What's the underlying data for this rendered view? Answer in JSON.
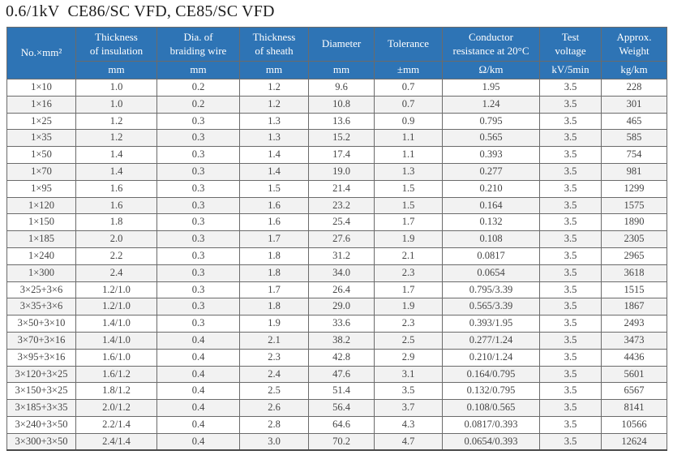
{
  "page": {
    "title": "0.6/1kV  CE86/SC VFD, CE85/SC VFD"
  },
  "colors": {
    "header_bg": "#2E74B5",
    "header_text": "#FFFFFF",
    "row_stripe": "#F2F2F2",
    "border": "#6B6B6B",
    "data_text": "#454545"
  },
  "table": {
    "columns": [
      {
        "label": "No.×mm²",
        "unit": ""
      },
      {
        "label": "Thickness\nof insulation",
        "unit": "mm"
      },
      {
        "label": "Dia. of\nbraiding wire",
        "unit": "mm"
      },
      {
        "label": "Thickness\nof sheath",
        "unit": "mm"
      },
      {
        "label": "Diameter",
        "unit": "mm"
      },
      {
        "label": "Tolerance",
        "unit": "±mm"
      },
      {
        "label": "Conductor\nresistance at 20°C",
        "unit": "Ω/km"
      },
      {
        "label": "Test\nvoltage",
        "unit": "kV/5min"
      },
      {
        "label": "Approx.\nWeight",
        "unit": "kg/km"
      }
    ],
    "rows": [
      [
        "1×10",
        "1.0",
        "0.2",
        "1.2",
        "9.6",
        "0.7",
        "1.95",
        "3.5",
        "228"
      ],
      [
        "1×16",
        "1.0",
        "0.2",
        "1.2",
        "10.8",
        "0.7",
        "1.24",
        "3.5",
        "301"
      ],
      [
        "1×25",
        "1.2",
        "0.3",
        "1.3",
        "13.6",
        "0.9",
        "0.795",
        "3.5",
        "465"
      ],
      [
        "1×35",
        "1.2",
        "0.3",
        "1.3",
        "15.2",
        "1.1",
        "0.565",
        "3.5",
        "585"
      ],
      [
        "1×50",
        "1.4",
        "0.3",
        "1.4",
        "17.4",
        "1.1",
        "0.393",
        "3.5",
        "754"
      ],
      [
        "1×70",
        "1.4",
        "0.3",
        "1.4",
        "19.0",
        "1.3",
        "0.277",
        "3.5",
        "981"
      ],
      [
        "1×95",
        "1.6",
        "0.3",
        "1.5",
        "21.4",
        "1.5",
        "0.210",
        "3.5",
        "1299"
      ],
      [
        "1×120",
        "1.6",
        "0.3",
        "1.6",
        "23.2",
        "1.5",
        "0.164",
        "3.5",
        "1575"
      ],
      [
        "1×150",
        "1.8",
        "0.3",
        "1.6",
        "25.4",
        "1.7",
        "0.132",
        "3.5",
        "1890"
      ],
      [
        "1×185",
        "2.0",
        "0.3",
        "1.7",
        "27.6",
        "1.9",
        "0.108",
        "3.5",
        "2305"
      ],
      [
        "1×240",
        "2.2",
        "0.3",
        "1.8",
        "31.2",
        "2.1",
        "0.0817",
        "3.5",
        "2965"
      ],
      [
        "1×300",
        "2.4",
        "0.3",
        "1.8",
        "34.0",
        "2.3",
        "0.0654",
        "3.5",
        "3618"
      ],
      [
        "3×25+3×6",
        "1.2/1.0",
        "0.3",
        "1.7",
        "26.4",
        "1.7",
        "0.795/3.39",
        "3.5",
        "1515"
      ],
      [
        "3×35+3×6",
        "1.2/1.0",
        "0.3",
        "1.8",
        "29.0",
        "1.9",
        "0.565/3.39",
        "3.5",
        "1867"
      ],
      [
        "3×50+3×10",
        "1.4/1.0",
        "0.3",
        "1.9",
        "33.6",
        "2.3",
        "0.393/1.95",
        "3.5",
        "2493"
      ],
      [
        "3×70+3×16",
        "1.4/1.0",
        "0.4",
        "2.1",
        "38.2",
        "2.5",
        "0.277/1.24",
        "3.5",
        "3473"
      ],
      [
        "3×95+3×16",
        "1.6/1.0",
        "0.4",
        "2.3",
        "42.8",
        "2.9",
        "0.210/1.24",
        "3.5",
        "4436"
      ],
      [
        "3×120+3×25",
        "1.6/1.2",
        "0.4",
        "2.4",
        "47.6",
        "3.1",
        "0.164/0.795",
        "3.5",
        "5601"
      ],
      [
        "3×150+3×25",
        "1.8/1.2",
        "0.4",
        "2.5",
        "51.4",
        "3.5",
        "0.132/0.795",
        "3.5",
        "6567"
      ],
      [
        "3×185+3×35",
        "2.0/1.2",
        "0.4",
        "2.6",
        "56.4",
        "3.7",
        "0.108/0.565",
        "3.5",
        "8141"
      ],
      [
        "3×240+3×50",
        "2.2/1.4",
        "0.4",
        "2.8",
        "64.6",
        "4.3",
        "0.0817/0.393",
        "3.5",
        "10566"
      ],
      [
        "3×300+3×50",
        "2.4/1.4",
        "0.4",
        "3.0",
        "70.2",
        "4.7",
        "0.0654/0.393",
        "3.5",
        "12624"
      ]
    ]
  }
}
